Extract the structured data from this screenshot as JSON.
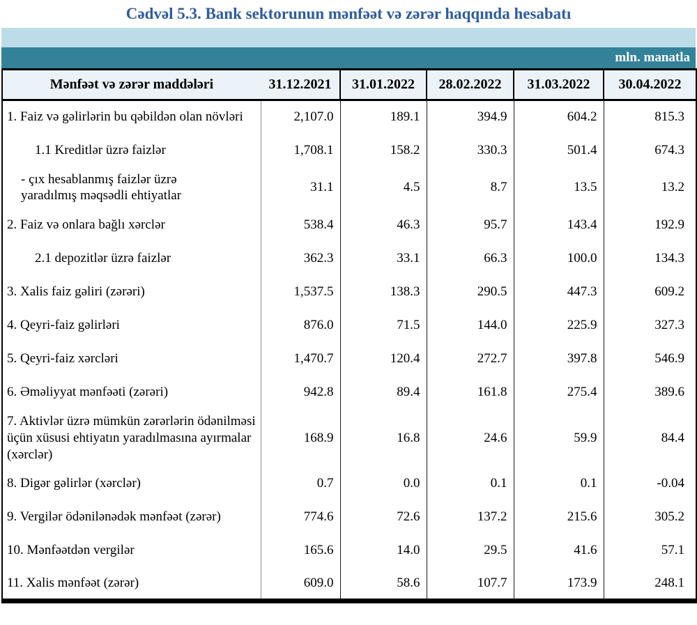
{
  "title": "Cədvəl 5.3. Bank sektorunun mənfəət və zərər haqqında hesabatı",
  "unit_label": "mln. manatla",
  "colors": {
    "title_blue": "#2e5d9e",
    "band_light_blue": "#bcdce8",
    "band_teal": "#338299",
    "header_row_bg": "#ebf3f8",
    "border_black": "#000000",
    "divider_gray": "#8c8c8c"
  },
  "table": {
    "header": {
      "label_col": "Mənfəət və zərər maddələri",
      "date_cols": [
        "31.12.2021",
        "31.01.2022",
        "28.02.2022",
        "31.03.2022",
        "30.04.2022"
      ]
    },
    "rows": [
      {
        "label": "1. Faiz və gəlirlərin bu qəbildən olan növləri",
        "indent": 0,
        "values": [
          "2,107.0",
          "189.1",
          "394.9",
          "604.2",
          "815.3"
        ]
      },
      {
        "label": "1.1 Kreditlər üzrə faizlər",
        "indent": 1,
        "values": [
          "1,708.1",
          "158.2",
          "330.3",
          "501.4",
          "674.3"
        ]
      },
      {
        "label": "-  çıx hesablanmış faizlər üzrə yaradılmış məqsədli ehtiyatlar",
        "indent": 2,
        "values": [
          "31.1",
          "4.5",
          "8.7",
          "13.5",
          "13.2"
        ]
      },
      {
        "label": "2. Faiz və onlara bağlı xərclər",
        "indent": 0,
        "values": [
          "538.4",
          "46.3",
          "95.7",
          "143.4",
          "192.9"
        ]
      },
      {
        "label": "2.1 depozitlər üzrə faizlər",
        "indent": 1,
        "values": [
          "362.3",
          "33.1",
          "66.3",
          "100.0",
          "134.3"
        ]
      },
      {
        "label": "3. Xalis faiz gəliri (zərəri)",
        "indent": 0,
        "values": [
          "1,537.5",
          "138.3",
          "290.5",
          "447.3",
          "609.2"
        ]
      },
      {
        "label": "4. Qeyri-faiz gəlirləri",
        "indent": 0,
        "values": [
          "876.0",
          "71.5",
          "144.0",
          "225.9",
          "327.3"
        ]
      },
      {
        "label": "5. Qeyri-faiz xərcləri",
        "indent": 0,
        "values": [
          "1,470.7",
          "120.4",
          "272.7",
          "397.8",
          "546.9"
        ]
      },
      {
        "label": "6. Əməliyyat mənfəəti (zərəri)",
        "indent": 0,
        "values": [
          "942.8",
          "89.4",
          "161.8",
          "275.4",
          "389.6"
        ]
      },
      {
        "label": "7. Aktivlər üzrə mümkün zərərlərin ödənilməsi üçün xüsusi ehtiyatın yaradılmasına ayırmalar (xərclər)",
        "indent": 0,
        "values": [
          "168.9",
          "16.8",
          "24.6",
          "59.9",
          "84.4"
        ]
      },
      {
        "label": "8. Digər gəlirlər (xərclər)",
        "indent": 0,
        "values": [
          "0.7",
          "0.0",
          "0.1",
          "0.1",
          "-0.04"
        ]
      },
      {
        "label": "9. Vergilər ödənilənədək mənfəət (zərər)",
        "indent": 0,
        "values": [
          "774.6",
          "72.6",
          "137.2",
          "215.6",
          "305.2"
        ]
      },
      {
        "label": "10. Mənfəətdən vergilər",
        "indent": 0,
        "values": [
          "165.6",
          "14.0",
          "29.5",
          "41.6",
          "57.1"
        ]
      },
      {
        "label": "11. Xalis mənfəət (zərər)",
        "indent": 0,
        "values": [
          "609.0",
          "58.6",
          "107.7",
          "173.9",
          "248.1"
        ]
      }
    ]
  }
}
